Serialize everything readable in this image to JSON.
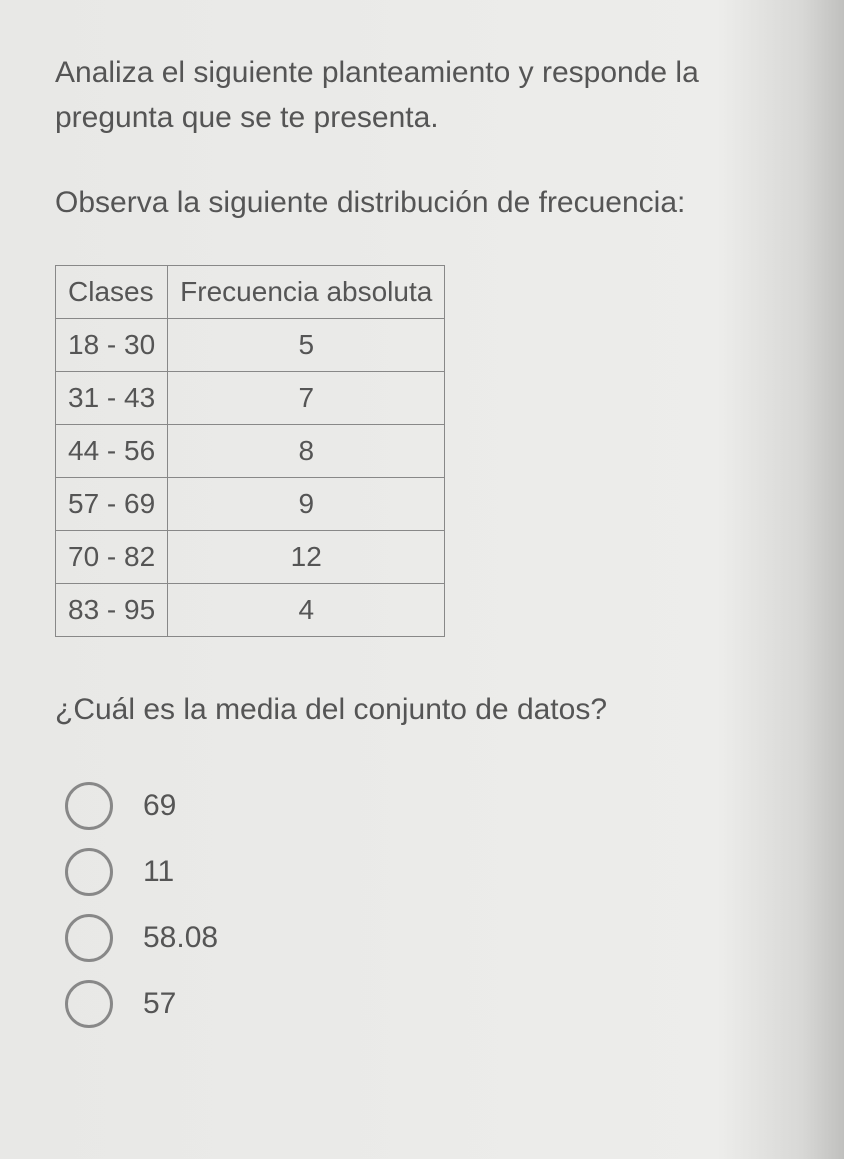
{
  "instruction": "Analiza el siguiente planteamiento y responde la pregunta que se te presenta.",
  "observe": "Observa la siguiente distribución de frecuencia:",
  "table": {
    "headers": {
      "col1": "Clases",
      "col2": "Frecuencia absoluta"
    },
    "rows": [
      {
        "class": "18 - 30",
        "freq": "5"
      },
      {
        "class": "31 - 43",
        "freq": "7"
      },
      {
        "class": "44 - 56",
        "freq": "8"
      },
      {
        "class": "57 - 69",
        "freq": "9"
      },
      {
        "class": "70 - 82",
        "freq": "12"
      },
      {
        "class": "83 - 95",
        "freq": "4"
      }
    ]
  },
  "question": "¿Cuál es la media del conjunto de datos?",
  "options": [
    {
      "label": "69"
    },
    {
      "label": "11"
    },
    {
      "label": "58.08"
    },
    {
      "label": "57"
    }
  ],
  "style": {
    "body_bg": "#e8e8e6",
    "text_color": "#555555",
    "border_color": "#888888",
    "radio_border": "#888888",
    "font_size_body": 30,
    "font_size_table": 28
  }
}
